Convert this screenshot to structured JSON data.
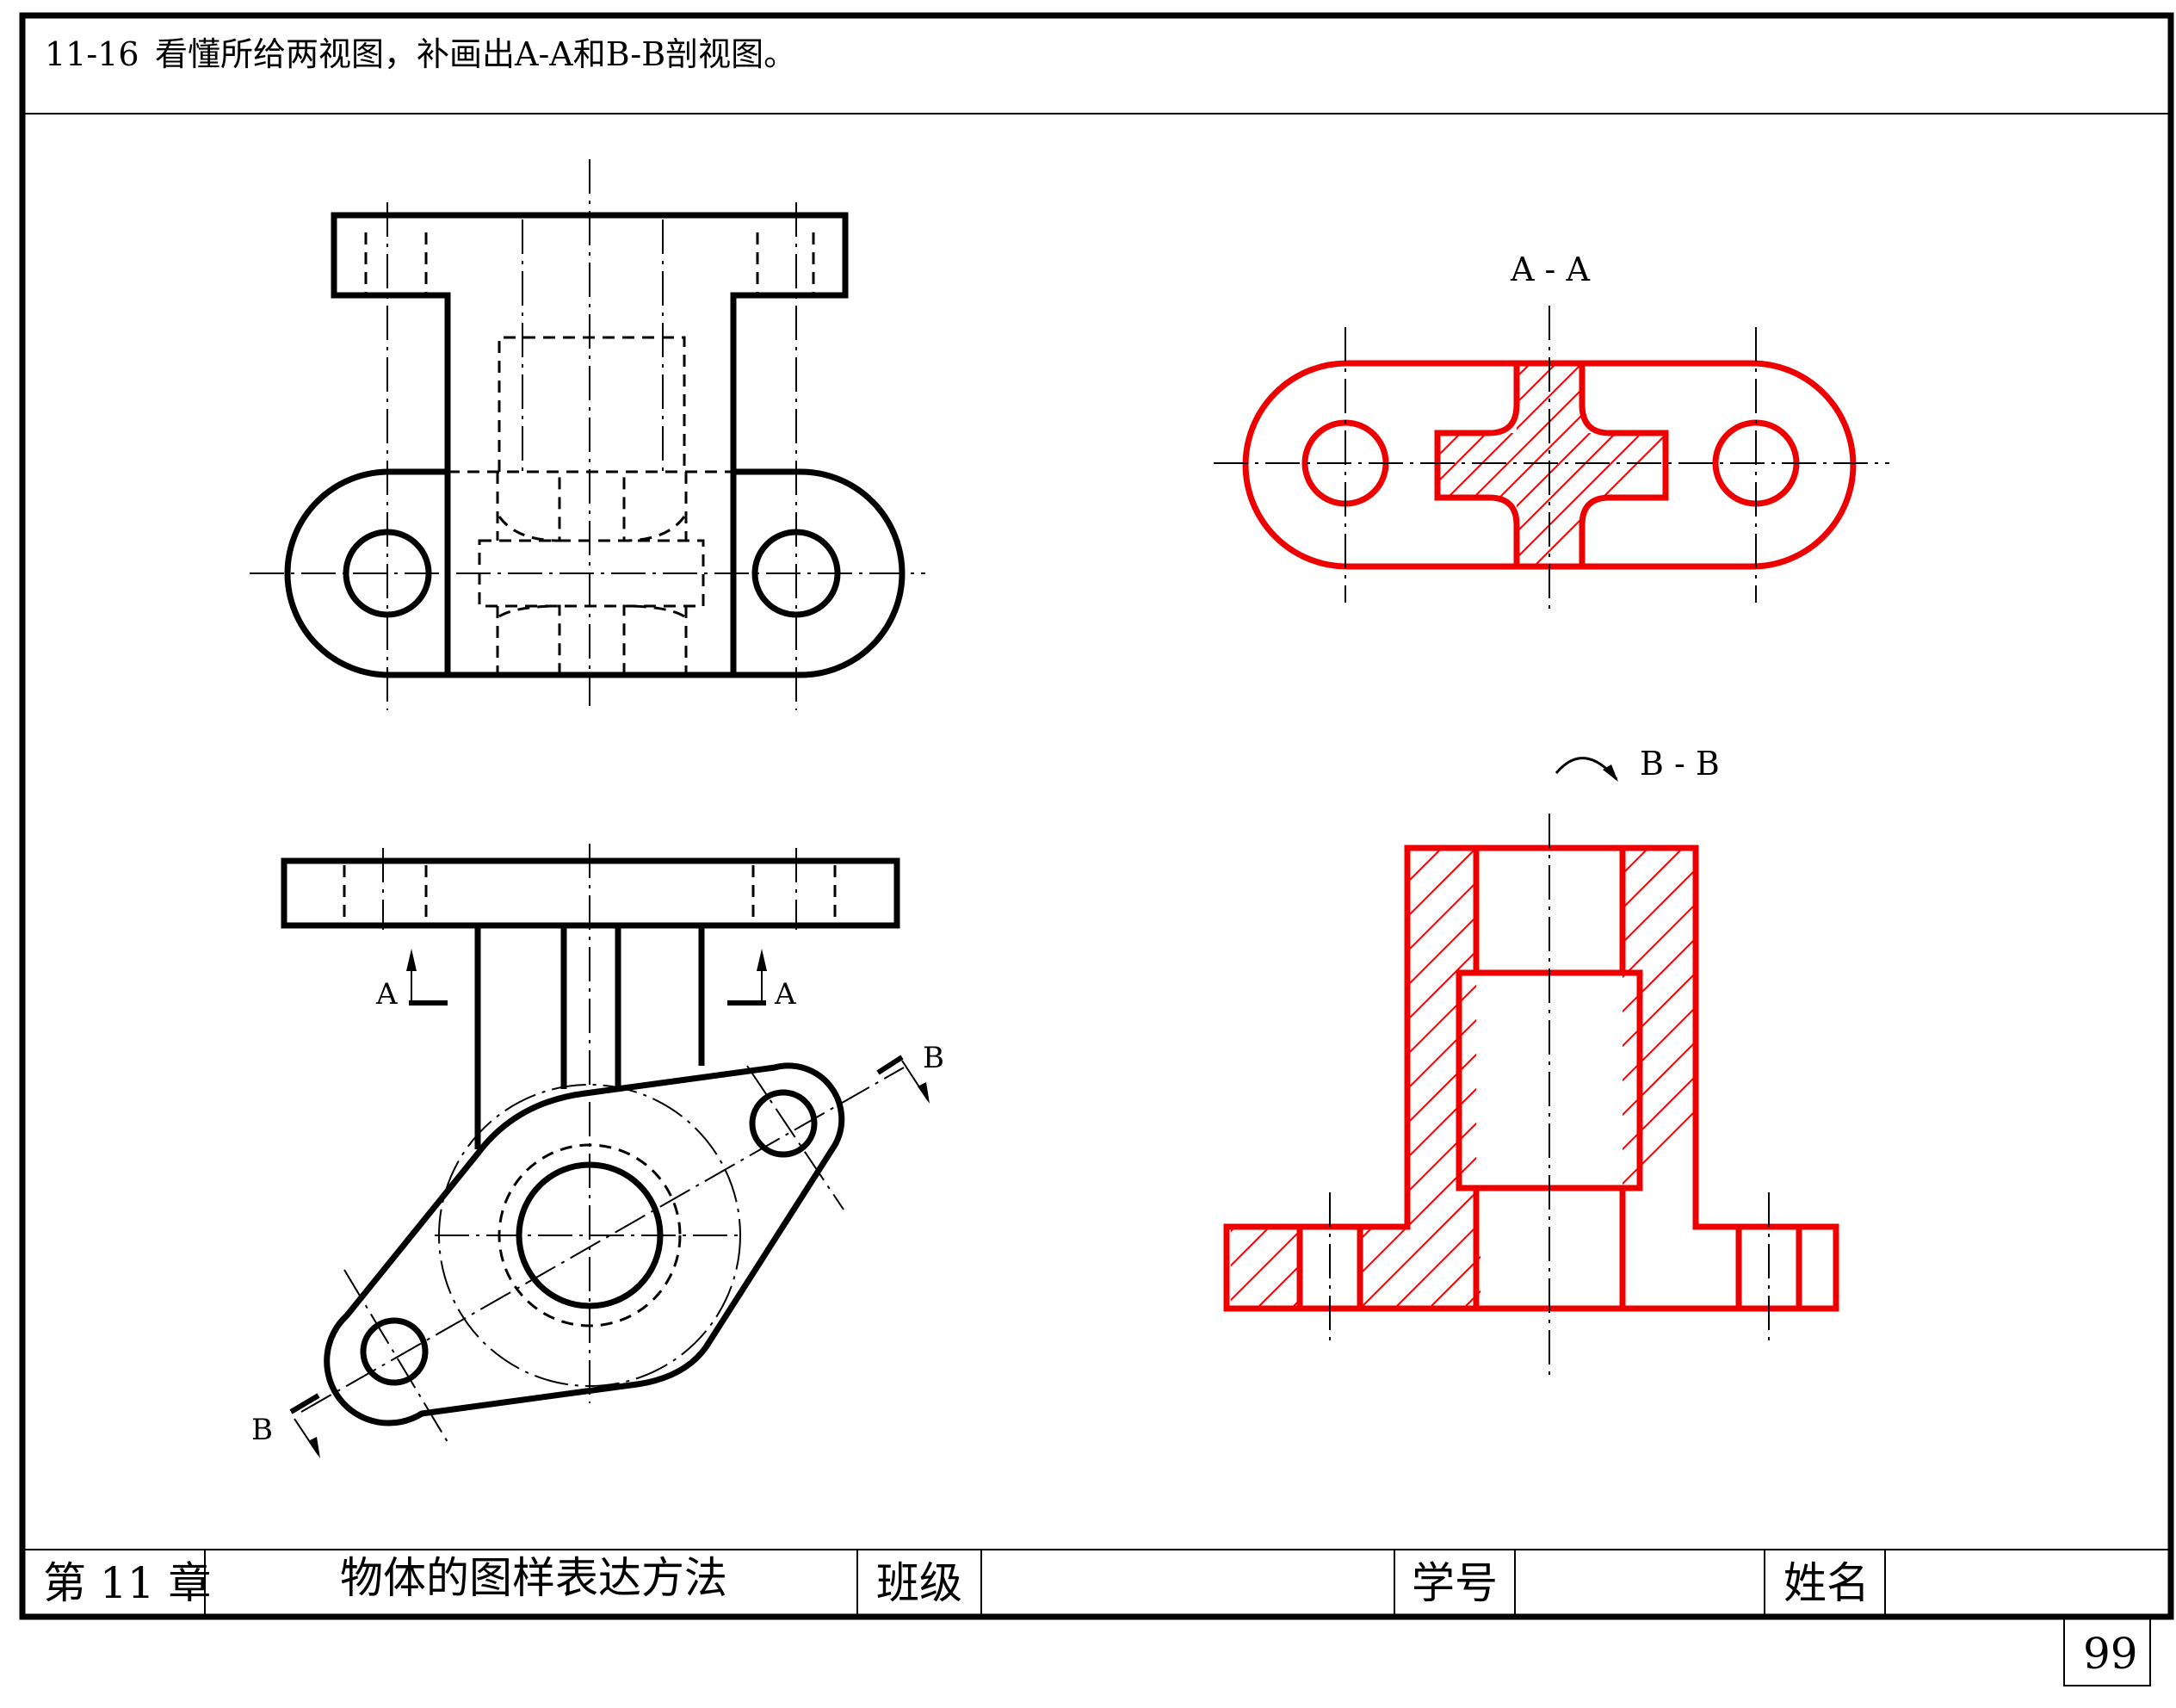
{
  "problem": {
    "number": "11-16",
    "statement": "看懂所给两视图，补画出A-A和B-B剖视图。"
  },
  "views": {
    "section_a_title": "A - A",
    "section_b_title": "B - B",
    "cut_a_label_left": "A",
    "cut_a_label_right": "A",
    "cut_b_label_top": "B",
    "cut_b_label_bottom": "B"
  },
  "title_block": {
    "chapter": "第 11 章",
    "topic": "物体的图样表达方法",
    "class_label": "班级",
    "class_value": "",
    "id_label": "学号",
    "id_value": "",
    "name_label": "姓名",
    "name_value": ""
  },
  "page_number": "99",
  "colors": {
    "ink": "#000000",
    "answer": "#ee0000"
  }
}
